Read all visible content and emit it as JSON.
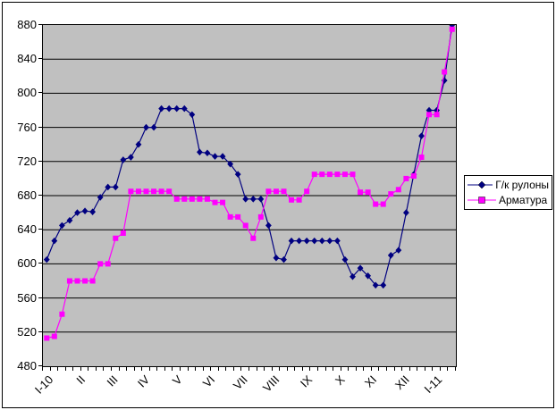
{
  "chart_data": {
    "type": "line",
    "title": "",
    "plot_bg_color": "#C0C0C0",
    "grid": true,
    "legend_position": "right",
    "x_labels": [
      "I-10",
      "II",
      "III",
      "IV",
      "V",
      "VI",
      "VII",
      "VIII",
      "IX",
      "X",
      "XI",
      "XII",
      "I-11"
    ],
    "y_axis": {
      "min": 480,
      "max": 880,
      "step": 40
    },
    "y_tick_labels": [
      "480",
      "520",
      "560",
      "600",
      "640",
      "680",
      "720",
      "760",
      "800",
      "840",
      "880"
    ],
    "series": [
      {
        "name": "Г/к рулоны",
        "color": "#000080",
        "marker": "diamond",
        "values": [
          605,
          627,
          645,
          651,
          660,
          662,
          661,
          678,
          690,
          690,
          722,
          725,
          740,
          760,
          760,
          782,
          782,
          782,
          782,
          775,
          731,
          730,
          726,
          726,
          717,
          705,
          676,
          676,
          676,
          645,
          607,
          605,
          627,
          627,
          627,
          627,
          627,
          627,
          627,
          605,
          585,
          595,
          586,
          575,
          575,
          610,
          616,
          660,
          705,
          750,
          780,
          780,
          815,
          880
        ]
      },
      {
        "name": "Арматура",
        "color": "#FF00FF",
        "marker": "square",
        "values": [
          513,
          515,
          541,
          580,
          580,
          580,
          580,
          600,
          600,
          630,
          636,
          685,
          685,
          685,
          685,
          685,
          685,
          676,
          676,
          676,
          676,
          676,
          672,
          672,
          655,
          655,
          645,
          630,
          655,
          685,
          685,
          685,
          675,
          675,
          685,
          705,
          705,
          705,
          705,
          705,
          705,
          684,
          684,
          670,
          670,
          682,
          687,
          700,
          703,
          725,
          775,
          775,
          825,
          875
        ]
      }
    ]
  },
  "legend": {
    "item1": "Г/к рулоны",
    "item2": "Арматура"
  }
}
